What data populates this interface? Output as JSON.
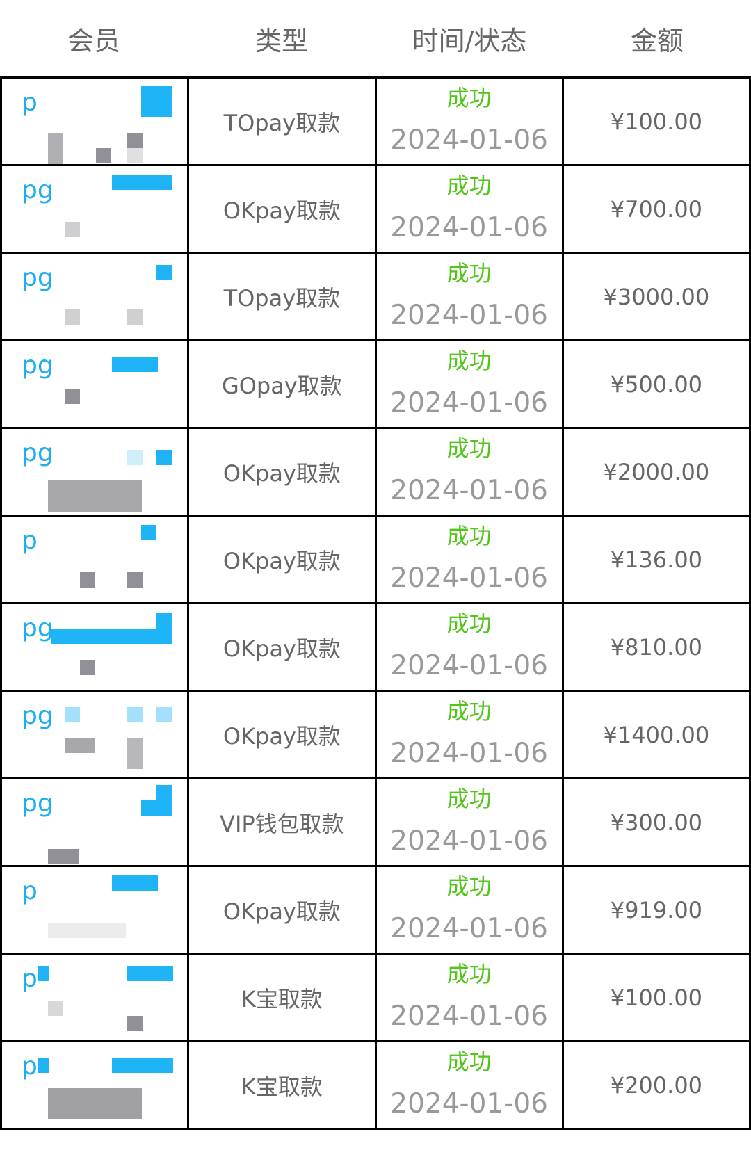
{
  "header": {
    "member": "会员",
    "type": "类型",
    "time_status": "时间/状态",
    "amount": "金额"
  },
  "colors": {
    "status_success": "#52c41a",
    "member_accent": "#1eaef0"
  },
  "rows": [
    {
      "member": "p",
      "type": "TOpay取款",
      "status": "成功",
      "date": "2024-01-06",
      "amount": "¥100.00"
    },
    {
      "member": "pg",
      "type": "OKpay取款",
      "status": "成功",
      "date": "2024-01-06",
      "amount": "¥700.00"
    },
    {
      "member": "pg",
      "type": "TOpay取款",
      "status": "成功",
      "date": "2024-01-06",
      "amount": "¥3000.00"
    },
    {
      "member": "pg",
      "type": "GOpay取款",
      "status": "成功",
      "date": "2024-01-06",
      "amount": "¥500.00"
    },
    {
      "member": "pg",
      "type": "OKpay取款",
      "status": "成功",
      "date": "2024-01-06",
      "amount": "¥2000.00"
    },
    {
      "member": "p",
      "type": "OKpay取款",
      "status": "成功",
      "date": "2024-01-06",
      "amount": "¥136.00"
    },
    {
      "member": "pg",
      "type": "OKpay取款",
      "status": "成功",
      "date": "2024-01-06",
      "amount": "¥810.00"
    },
    {
      "member": "pg",
      "type": "OKpay取款",
      "status": "成功",
      "date": "2024-01-06",
      "amount": "¥1400.00"
    },
    {
      "member": "pg",
      "type": "VIP钱包取款",
      "status": "成功",
      "date": "2024-01-06",
      "amount": "¥300.00"
    },
    {
      "member": "p",
      "type": "OKpay取款",
      "status": "成功",
      "date": "2024-01-06",
      "amount": "¥919.00"
    },
    {
      "member": "p",
      "type": "K宝取款",
      "status": "成功",
      "date": "2024-01-06",
      "amount": "¥100.00"
    },
    {
      "member": "p",
      "type": "K宝取款",
      "status": "成功",
      "date": "2024-01-06",
      "amount": "¥200.00"
    }
  ]
}
